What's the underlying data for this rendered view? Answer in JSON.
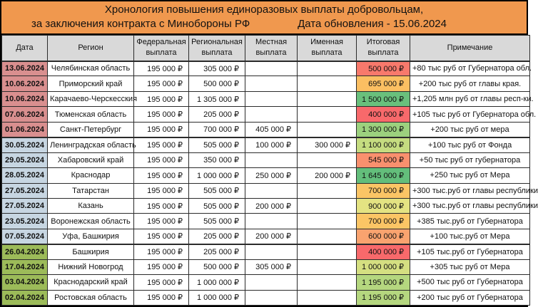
{
  "title": {
    "line1": "Хронология повышения единоразовых выплаты добровольцам,",
    "line2_left": "за заключения контракта с Минобороны РФ",
    "line2_right": "Дата обновления - 15.06.2024"
  },
  "colors": {
    "title_bg": "#F0984E",
    "column_header_bg": "#D9D9D9",
    "date_june_bg": "#D98F8F",
    "date_may_bg": "#C7D6E2",
    "date_april_bg": "#9CBB59",
    "scale_red": "#F8696B",
    "scale_yellow": "#FFEB84",
    "scale_green": "#63BE7B"
  },
  "table": {
    "columns": [
      "Дата",
      "Регион",
      "Федеральная выплата",
      "Региональная выплата",
      "Местная выплата",
      "Именная выплата",
      "Итоговая выплата",
      "Примечание"
    ],
    "rows": [
      {
        "date": "13.06.2024",
        "date_bg": "#D98F8F",
        "region": "Челябинская область",
        "federal": "195 000 ₽",
        "regional": "305 000 ₽",
        "local": "",
        "named": "",
        "total": "500 000 ₽",
        "total_bg": "#F8796C",
        "note": "+80 тыс руб от Губернатора обл."
      },
      {
        "date": "10.06.2024",
        "date_bg": "#D98F8F",
        "region": "Приморский край",
        "federal": "195 000 ₽",
        "regional": "500 000 ₽",
        "local": "",
        "named": "",
        "total": "695 000 ₽",
        "total_bg": "#FBBF62",
        "note": "+200 тыс руб от главы края."
      },
      {
        "date": "10.06.2024",
        "date_bg": "#D98F8F",
        "region": "Карачаево-Черскесския",
        "federal": "195 000 ₽",
        "regional": "1 305 000 ₽",
        "local": "",
        "named": "",
        "total": "1 500 000 ₽",
        "total_bg": "#69C07C",
        "note": "+1,205 млн руб от главы респ-ки."
      },
      {
        "date": "07.06.2024",
        "date_bg": "#D98F8F",
        "region": "Тюменская область",
        "federal": "195 000 ₽",
        "regional": "205 000 ₽",
        "local": "",
        "named": "",
        "total": "400 000 ₽",
        "total_bg": "#F8696B",
        "note": "+105 тыс руб от Губернатора обл."
      },
      {
        "date": "01.06.2024",
        "date_bg": "#D98F8F",
        "region": "Санкт-Петербург",
        "federal": "195 000 ₽",
        "regional": "700 000 ₽",
        "local": "405 000 ₽",
        "named": "",
        "total": "1 300 000 ₽",
        "total_bg": "#9CD17E",
        "note": "+200 тыс руб от мера"
      },
      {
        "date": "30.05.2024",
        "date_bg": "#C7D6E2",
        "region": "Ленинградская область",
        "federal": "195 000 ₽",
        "regional": "505 000 ₽",
        "local": "100 000 ₽",
        "named": "300 000 ₽",
        "total": "1 100 000 ₽",
        "total_bg": "#C5DC80",
        "note": "+100 тыс руб от Фонда"
      },
      {
        "date": "29.05.2024",
        "date_bg": "#C7D6E2",
        "region": "Хабаровский край",
        "federal": "195 000 ₽",
        "regional": "350 000 ₽",
        "local": "",
        "named": "",
        "total": "545 000 ₽",
        "total_bg": "#F9906E",
        "note": "+50 тыс руб от губернатора"
      },
      {
        "date": "28.05.2024",
        "date_bg": "#C7D6E2",
        "region": "Краснодар",
        "federal": "195 000 ₽",
        "regional": "1 000 000 ₽",
        "local": "250 000 ₽",
        "named": "200 000 ₽",
        "total": "1 645 000 ₽",
        "total_bg": "#63BE7B",
        "note": "+250 тыс руб от Мера"
      },
      {
        "date": "27.05.2024",
        "date_bg": "#C7D6E2",
        "region": "Татарстан",
        "federal": "195 000 ₽",
        "regional": "505 000 ₽",
        "local": "",
        "named": "",
        "total": "700 000 ₽",
        "total_bg": "#FBC565",
        "note": "+300 тыс.руб от главы республики"
      },
      {
        "date": "27.05.2024",
        "date_bg": "#C7D6E2",
        "region": "Казань",
        "federal": "195 000 ₽",
        "regional": "505 000 ₽",
        "local": "200 000 ₽",
        "named": "",
        "total": "900 000 ₽",
        "total_bg": "#E4E382",
        "note": "+300 тыс.руб от главы республики"
      },
      {
        "date": "23.05.2024",
        "date_bg": "#C7D6E2",
        "region": "Воронежская область",
        "federal": "195 000 ₽",
        "regional": "505 000 ₽",
        "local": "",
        "named": "",
        "total": "700 000 ₽",
        "total_bg": "#FBC565",
        "note": "+385 тыс.руб от Губернатора"
      },
      {
        "date": "07.05.2024",
        "date_bg": "#C7D6E2",
        "region": "Уфа, Башкирия",
        "federal": "195 000 ₽",
        "regional": "205 000 ₽",
        "local": "200 000 ₽",
        "named": "",
        "total": "600 000 ₽",
        "total_bg": "#F9A36F",
        "note": "+100 тыс.руб от Мера"
      },
      {
        "date": "26.04.2024",
        "date_bg": "#9CBB59",
        "region": "Башкирия",
        "federal": "195 000 ₽",
        "regional": "205 000 ₽",
        "local": "",
        "named": "",
        "total": "400 000 ₽",
        "total_bg": "#F8696B",
        "note": "+105 тыс.руб от Губернатора"
      },
      {
        "date": "17.04.2024",
        "date_bg": "#9CBB59",
        "region": "Нижний Новогрод",
        "federal": "195 000 ₽",
        "regional": "500 000 ₽",
        "local": "305 000 ₽",
        "named": "",
        "total": "1 000 000 ₽",
        "total_bg": "#D5DF81",
        "note": "+305 тыс руб от Мера"
      },
      {
        "date": "03.04.2024",
        "date_bg": "#9CBB59",
        "region": "Краснодарский край",
        "federal": "195 000 ₽",
        "regional": "1 000 000 ₽",
        "local": "",
        "named": "",
        "total": "1 195 000 ₽",
        "total_bg": "#B5D77F",
        "note": "+500 тыс руб от Губернатора"
      },
      {
        "date": "02.04.2024",
        "date_bg": "#9CBB59",
        "region": "Ростовская область",
        "federal": "195 000 ₽",
        "regional": "1 000 000 ₽",
        "local": "",
        "named": "",
        "total": "1 195 000 ₽",
        "total_bg": "#B5D77F",
        "note": "+200 тыс руб от Губернатора"
      }
    ]
  }
}
